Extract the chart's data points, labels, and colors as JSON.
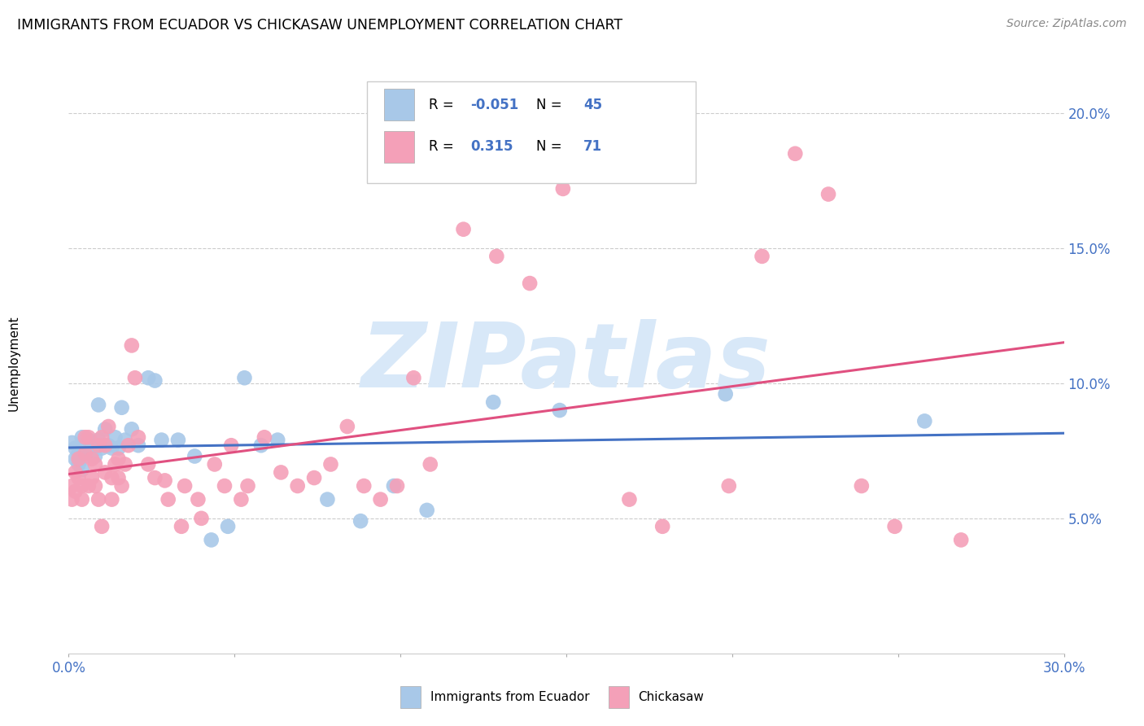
{
  "title": "IMMIGRANTS FROM ECUADOR VS CHICKASAW UNEMPLOYMENT CORRELATION CHART",
  "source": "Source: ZipAtlas.com",
  "ylabel": "Unemployment",
  "xlim": [
    0.0,
    0.3
  ],
  "ylim": [
    0.0,
    0.215
  ],
  "yticks": [
    0.05,
    0.1,
    0.15,
    0.2
  ],
  "ytick_labels": [
    "5.0%",
    "10.0%",
    "15.0%",
    "20.0%"
  ],
  "xticks": [
    0.0,
    0.05,
    0.1,
    0.15,
    0.2,
    0.25,
    0.3
  ],
  "legend_blue_label": "Immigrants from Ecuador",
  "legend_pink_label": "Chickasaw",
  "R_blue": -0.051,
  "N_blue": 45,
  "R_pink": 0.315,
  "N_pink": 71,
  "blue_color": "#A8C8E8",
  "pink_color": "#F4A0B8",
  "blue_line_color": "#4472C4",
  "pink_line_color": "#E05080",
  "watermark_color": "#D8E8F8",
  "blue_points": [
    [
      0.001,
      0.078
    ],
    [
      0.002,
      0.076
    ],
    [
      0.002,
      0.072
    ],
    [
      0.003,
      0.07
    ],
    [
      0.003,
      0.074
    ],
    [
      0.004,
      0.08
    ],
    [
      0.004,
      0.068
    ],
    [
      0.005,
      0.077
    ],
    [
      0.005,
      0.073
    ],
    [
      0.006,
      0.079
    ],
    [
      0.006,
      0.075
    ],
    [
      0.007,
      0.078
    ],
    [
      0.007,
      0.074
    ],
    [
      0.008,
      0.076
    ],
    [
      0.008,
      0.073
    ],
    [
      0.009,
      0.092
    ],
    [
      0.009,
      0.079
    ],
    [
      0.01,
      0.076
    ],
    [
      0.011,
      0.083
    ],
    [
      0.012,
      0.077
    ],
    [
      0.013,
      0.076
    ],
    [
      0.014,
      0.08
    ],
    [
      0.015,
      0.076
    ],
    [
      0.016,
      0.091
    ],
    [
      0.017,
      0.079
    ],
    [
      0.019,
      0.083
    ],
    [
      0.021,
      0.077
    ],
    [
      0.024,
      0.102
    ],
    [
      0.026,
      0.101
    ],
    [
      0.028,
      0.079
    ],
    [
      0.033,
      0.079
    ],
    [
      0.038,
      0.073
    ],
    [
      0.043,
      0.042
    ],
    [
      0.048,
      0.047
    ],
    [
      0.053,
      0.102
    ],
    [
      0.058,
      0.077
    ],
    [
      0.063,
      0.079
    ],
    [
      0.078,
      0.057
    ],
    [
      0.088,
      0.049
    ],
    [
      0.098,
      0.062
    ],
    [
      0.108,
      0.053
    ],
    [
      0.128,
      0.093
    ],
    [
      0.148,
      0.09
    ],
    [
      0.198,
      0.096
    ],
    [
      0.258,
      0.086
    ]
  ],
  "pink_points": [
    [
      0.001,
      0.062
    ],
    [
      0.001,
      0.057
    ],
    [
      0.002,
      0.067
    ],
    [
      0.002,
      0.06
    ],
    [
      0.003,
      0.072
    ],
    [
      0.003,
      0.065
    ],
    [
      0.004,
      0.062
    ],
    [
      0.004,
      0.057
    ],
    [
      0.005,
      0.074
    ],
    [
      0.005,
      0.08
    ],
    [
      0.006,
      0.08
    ],
    [
      0.006,
      0.062
    ],
    [
      0.007,
      0.072
    ],
    [
      0.007,
      0.065
    ],
    [
      0.008,
      0.07
    ],
    [
      0.008,
      0.062
    ],
    [
      0.009,
      0.077
    ],
    [
      0.009,
      0.057
    ],
    [
      0.01,
      0.08
    ],
    [
      0.01,
      0.047
    ],
    [
      0.011,
      0.077
    ],
    [
      0.011,
      0.067
    ],
    [
      0.012,
      0.084
    ],
    [
      0.013,
      0.065
    ],
    [
      0.013,
      0.057
    ],
    [
      0.014,
      0.07
    ],
    [
      0.015,
      0.072
    ],
    [
      0.015,
      0.065
    ],
    [
      0.016,
      0.062
    ],
    [
      0.017,
      0.07
    ],
    [
      0.018,
      0.077
    ],
    [
      0.019,
      0.114
    ],
    [
      0.02,
      0.102
    ],
    [
      0.021,
      0.08
    ],
    [
      0.024,
      0.07
    ],
    [
      0.026,
      0.065
    ],
    [
      0.029,
      0.064
    ],
    [
      0.03,
      0.057
    ],
    [
      0.034,
      0.047
    ],
    [
      0.035,
      0.062
    ],
    [
      0.039,
      0.057
    ],
    [
      0.04,
      0.05
    ],
    [
      0.044,
      0.07
    ],
    [
      0.047,
      0.062
    ],
    [
      0.049,
      0.077
    ],
    [
      0.052,
      0.057
    ],
    [
      0.054,
      0.062
    ],
    [
      0.059,
      0.08
    ],
    [
      0.064,
      0.067
    ],
    [
      0.069,
      0.062
    ],
    [
      0.074,
      0.065
    ],
    [
      0.079,
      0.07
    ],
    [
      0.084,
      0.084
    ],
    [
      0.089,
      0.062
    ],
    [
      0.094,
      0.057
    ],
    [
      0.099,
      0.062
    ],
    [
      0.104,
      0.102
    ],
    [
      0.109,
      0.07
    ],
    [
      0.119,
      0.157
    ],
    [
      0.129,
      0.147
    ],
    [
      0.139,
      0.137
    ],
    [
      0.149,
      0.172
    ],
    [
      0.169,
      0.057
    ],
    [
      0.179,
      0.047
    ],
    [
      0.199,
      0.062
    ],
    [
      0.209,
      0.147
    ],
    [
      0.219,
      0.185
    ],
    [
      0.229,
      0.17
    ],
    [
      0.239,
      0.062
    ],
    [
      0.249,
      0.047
    ],
    [
      0.269,
      0.042
    ]
  ]
}
